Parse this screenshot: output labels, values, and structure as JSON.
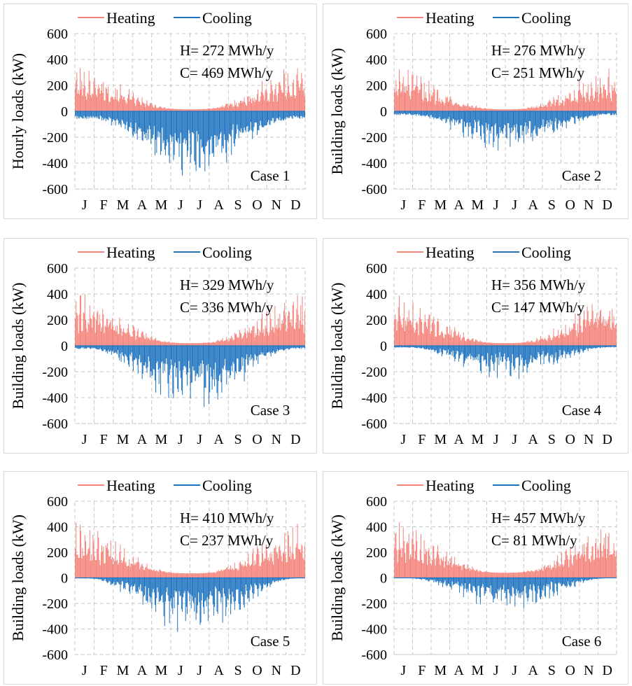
{
  "colors": {
    "heating": "#f4837a",
    "cooling": "#1f73c0",
    "grid": "#c6c6c6"
  },
  "chart_data": [
    {
      "type": "bar",
      "series": [
        {
          "name": "Heating",
          "peak": 370,
          "floor": 15,
          "annual_mwh": 272
        },
        {
          "name": "Cooling",
          "peak": -540,
          "floor": -60,
          "annual_mwh": 469
        }
      ],
      "xticklabels": [
        "J",
        "F",
        "M",
        "A",
        "M",
        "J",
        "J",
        "A",
        "S",
        "O",
        "N",
        "D"
      ],
      "ylabel": "Hourly loads (kW)",
      "ylim": [
        -600,
        600
      ],
      "yticks": [
        -600,
        -400,
        -200,
        0,
        200,
        400,
        600
      ],
      "annotation": {
        "heating": "H= 272 MWh/y",
        "cooling": "C= 469 MWh/y"
      },
      "case_label": "Case 1",
      "grid": true,
      "legend": "top"
    },
    {
      "type": "bar",
      "series": [
        {
          "name": "Heating",
          "peak": 350,
          "floor": 15,
          "annual_mwh": 276
        },
        {
          "name": "Cooling",
          "peak": -320,
          "floor": -30,
          "annual_mwh": 251
        }
      ],
      "xticklabels": [
        "J",
        "F",
        "M",
        "A",
        "M",
        "J",
        "J",
        "A",
        "S",
        "O",
        "N",
        "D"
      ],
      "ylabel": "Building loads (kW)",
      "ylim": [
        -600,
        600
      ],
      "yticks": [
        -600,
        -400,
        -200,
        0,
        200,
        400,
        600
      ],
      "annotation": {
        "heating": "H= 276 MWh/y",
        "cooling": "C= 251 MWh/y"
      },
      "case_label": "Case 2",
      "grid": true,
      "legend": "top"
    },
    {
      "type": "bar",
      "series": [
        {
          "name": "Heating",
          "peak": 420,
          "floor": 20,
          "annual_mwh": 329
        },
        {
          "name": "Cooling",
          "peak": -500,
          "floor": -25,
          "annual_mwh": 336
        }
      ],
      "xticklabels": [
        "J",
        "F",
        "M",
        "A",
        "M",
        "J",
        "J",
        "A",
        "S",
        "O",
        "N",
        "D"
      ],
      "ylabel": "Building loads (kW)",
      "ylim": [
        -600,
        600
      ],
      "yticks": [
        -600,
        -400,
        -200,
        0,
        200,
        400,
        600
      ],
      "annotation": {
        "heating": "H= 329 MWh/y",
        "cooling": "C= 336 MWh/y"
      },
      "case_label": "Case 3",
      "grid": true,
      "legend": "top"
    },
    {
      "type": "bar",
      "series": [
        {
          "name": "Heating",
          "peak": 410,
          "floor": 20,
          "annual_mwh": 356
        },
        {
          "name": "Cooling",
          "peak": -280,
          "floor": -15,
          "annual_mwh": 147
        }
      ],
      "xticklabels": [
        "J",
        "F",
        "M",
        "A",
        "M",
        "J",
        "J",
        "A",
        "S",
        "O",
        "N",
        "D"
      ],
      "ylabel": "Building loads (kW)",
      "ylim": [
        -600,
        600
      ],
      "yticks": [
        -600,
        -400,
        -200,
        0,
        200,
        400,
        600
      ],
      "annotation": {
        "heating": "H= 356 MWh/y",
        "cooling": "C= 147 MWh/y"
      },
      "case_label": "Case 4",
      "grid": true,
      "legend": "top"
    },
    {
      "type": "bar",
      "series": [
        {
          "name": "Heating",
          "peak": 440,
          "floor": 35,
          "annual_mwh": 410
        },
        {
          "name": "Cooling",
          "peak": -470,
          "floor": -5,
          "annual_mwh": 237
        }
      ],
      "xticklabels": [
        "J",
        "F",
        "M",
        "A",
        "M",
        "J",
        "J",
        "A",
        "S",
        "O",
        "N",
        "D"
      ],
      "ylabel": "Building loads (kW)",
      "ylim": [
        -600,
        600
      ],
      "yticks": [
        -600,
        -400,
        -200,
        0,
        200,
        400,
        600
      ],
      "annotation": {
        "heating": "H= 410 MWh/y",
        "cooling": "C= 237 MWh/y"
      },
      "case_label": "Case 5",
      "grid": true,
      "legend": "top"
    },
    {
      "type": "bar",
      "series": [
        {
          "name": "Heating",
          "peak": 450,
          "floor": 40,
          "annual_mwh": 457
        },
        {
          "name": "Cooling",
          "peak": -260,
          "floor": -3,
          "annual_mwh": 81
        }
      ],
      "xticklabels": [
        "J",
        "F",
        "M",
        "A",
        "M",
        "J",
        "J",
        "A",
        "S",
        "O",
        "N",
        "D"
      ],
      "ylabel": "Building loads (kW)",
      "ylim": [
        -600,
        600
      ],
      "yticks": [
        -600,
        -400,
        -200,
        0,
        200,
        400,
        600
      ],
      "annotation": {
        "heating": "H= 457 MWh/y",
        "cooling": "C= 81 MWh/y"
      },
      "case_label": "Case 6",
      "grid": true,
      "legend": "top"
    }
  ]
}
